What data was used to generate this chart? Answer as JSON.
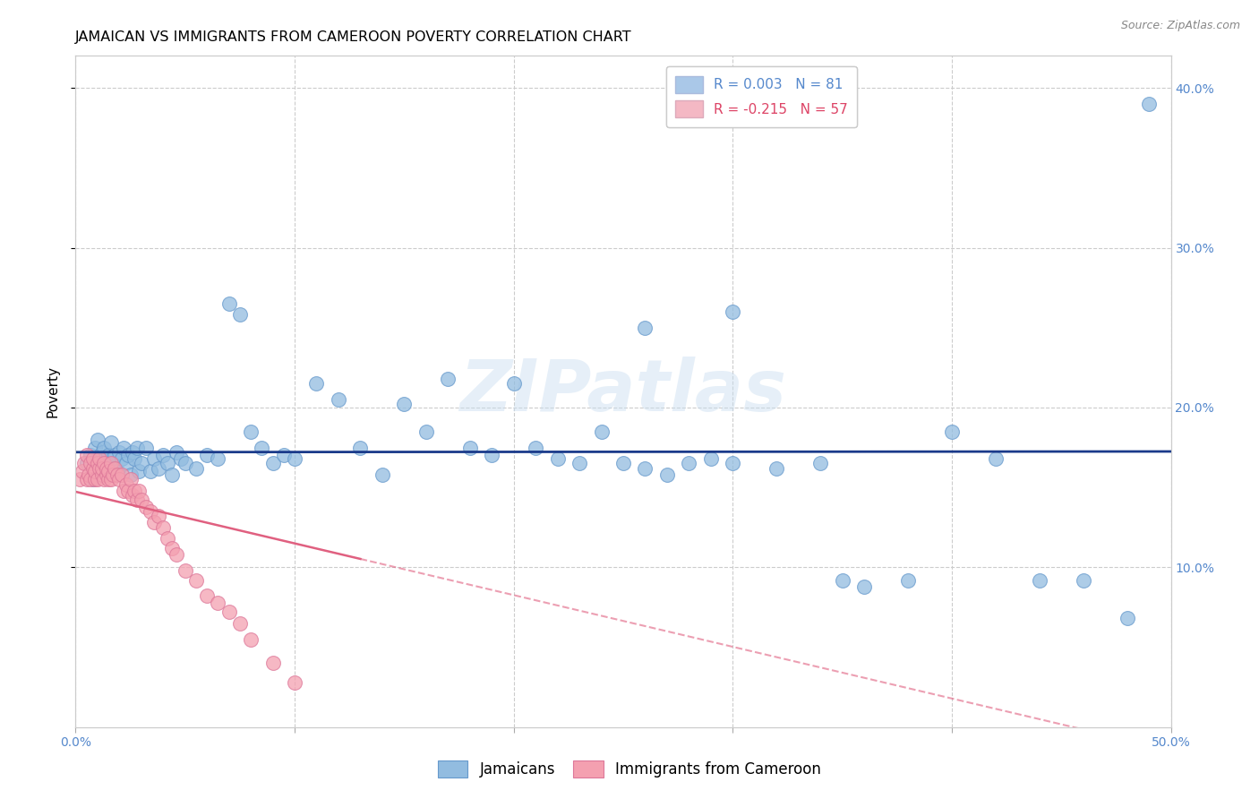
{
  "title": "JAMAICAN VS IMMIGRANTS FROM CAMEROON POVERTY CORRELATION CHART",
  "source": "Source: ZipAtlas.com",
  "ylabel_label": "Poverty",
  "xlim": [
    0.0,
    0.5
  ],
  "ylim": [
    0.0,
    0.42
  ],
  "xticks": [
    0.0,
    0.1,
    0.2,
    0.3,
    0.4,
    0.5
  ],
  "yticks": [
    0.1,
    0.2,
    0.3,
    0.4
  ],
  "scatter_color_j": "#92bce0",
  "scatter_color_c": "#f4a0b0",
  "line_color_j": "#1a3a8a",
  "line_color_c": "#e06080",
  "legend_color_j": "#aac8e8",
  "legend_color_c": "#f4b8c4",
  "legend_text_j": "R = 0.003   N = 81",
  "legend_text_c": "R = -0.215   N = 57",
  "grid_color": "#cccccc",
  "tick_color": "#5588cc",
  "watermark": "ZIPatlas",
  "title_fontsize": 11.5,
  "tick_fontsize": 10,
  "jamaicans_R": 0.003,
  "cameroon_R": -0.215,
  "jamaicans_x": [
    0.005,
    0.007,
    0.008,
    0.009,
    0.01,
    0.01,
    0.011,
    0.012,
    0.012,
    0.013,
    0.014,
    0.015,
    0.015,
    0.016,
    0.017,
    0.018,
    0.019,
    0.02,
    0.021,
    0.022,
    0.023,
    0.024,
    0.025,
    0.026,
    0.027,
    0.028,
    0.029,
    0.03,
    0.032,
    0.034,
    0.036,
    0.038,
    0.04,
    0.042,
    0.044,
    0.046,
    0.048,
    0.05,
    0.055,
    0.06,
    0.065,
    0.07,
    0.075,
    0.08,
    0.085,
    0.09,
    0.095,
    0.1,
    0.11,
    0.12,
    0.13,
    0.14,
    0.15,
    0.16,
    0.17,
    0.18,
    0.19,
    0.2,
    0.21,
    0.22,
    0.23,
    0.24,
    0.25,
    0.26,
    0.27,
    0.28,
    0.29,
    0.3,
    0.32,
    0.34,
    0.36,
    0.38,
    0.4,
    0.42,
    0.44,
    0.46,
    0.48,
    0.26,
    0.3,
    0.35,
    0.49
  ],
  "jamaicans_y": [
    0.165,
    0.17,
    0.155,
    0.175,
    0.168,
    0.18,
    0.162,
    0.172,
    0.158,
    0.175,
    0.165,
    0.17,
    0.162,
    0.178,
    0.165,
    0.17,
    0.16,
    0.172,
    0.168,
    0.175,
    0.165,
    0.17,
    0.158,
    0.172,
    0.168,
    0.175,
    0.16,
    0.165,
    0.175,
    0.16,
    0.168,
    0.162,
    0.17,
    0.165,
    0.158,
    0.172,
    0.168,
    0.165,
    0.162,
    0.17,
    0.168,
    0.265,
    0.258,
    0.185,
    0.175,
    0.165,
    0.17,
    0.168,
    0.215,
    0.205,
    0.175,
    0.158,
    0.202,
    0.185,
    0.218,
    0.175,
    0.17,
    0.215,
    0.175,
    0.168,
    0.165,
    0.185,
    0.165,
    0.162,
    0.158,
    0.165,
    0.168,
    0.165,
    0.162,
    0.165,
    0.088,
    0.092,
    0.185,
    0.168,
    0.092,
    0.092,
    0.068,
    0.25,
    0.26,
    0.092,
    0.39
  ],
  "cameroon_x": [
    0.002,
    0.003,
    0.004,
    0.005,
    0.005,
    0.006,
    0.007,
    0.007,
    0.008,
    0.008,
    0.009,
    0.009,
    0.01,
    0.01,
    0.011,
    0.011,
    0.012,
    0.012,
    0.013,
    0.013,
    0.014,
    0.014,
    0.015,
    0.015,
    0.016,
    0.016,
    0.017,
    0.018,
    0.019,
    0.02,
    0.021,
    0.022,
    0.023,
    0.024,
    0.025,
    0.026,
    0.027,
    0.028,
    0.029,
    0.03,
    0.032,
    0.034,
    0.036,
    0.038,
    0.04,
    0.042,
    0.044,
    0.046,
    0.05,
    0.055,
    0.06,
    0.065,
    0.07,
    0.075,
    0.08,
    0.09,
    0.1
  ],
  "cameroon_y": [
    0.155,
    0.16,
    0.165,
    0.155,
    0.17,
    0.158,
    0.165,
    0.155,
    0.162,
    0.168,
    0.155,
    0.16,
    0.165,
    0.155,
    0.162,
    0.168,
    0.158,
    0.162,
    0.165,
    0.155,
    0.158,
    0.162,
    0.155,
    0.16,
    0.165,
    0.155,
    0.158,
    0.162,
    0.158,
    0.155,
    0.158,
    0.148,
    0.152,
    0.148,
    0.155,
    0.145,
    0.148,
    0.142,
    0.148,
    0.142,
    0.138,
    0.135,
    0.128,
    0.132,
    0.125,
    0.118,
    0.112,
    0.108,
    0.098,
    0.092,
    0.082,
    0.078,
    0.072,
    0.065,
    0.055,
    0.04,
    0.028
  ]
}
